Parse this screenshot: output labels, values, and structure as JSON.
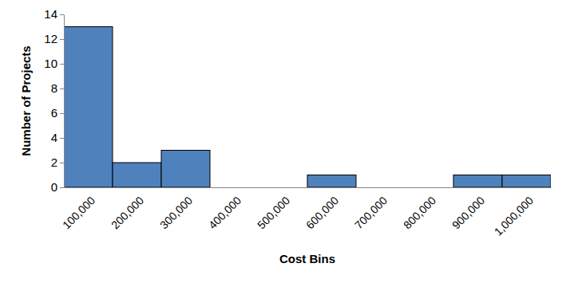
{
  "chart_data": {
    "type": "bar",
    "x_label": "Cost Bins",
    "y_label": "Number of Projects",
    "categories": [
      "100,000",
      "200,000",
      "300,000",
      "400,000",
      "500,000",
      "600,000",
      "700,000",
      "800,000",
      "900,000",
      "1,000,000"
    ],
    "values": [
      13,
      2,
      3,
      0,
      0,
      1,
      0,
      0,
      1,
      1
    ],
    "color": "#4f81bd",
    "ylim": [
      0,
      14
    ],
    "yticks": [
      0,
      2,
      4,
      6,
      8,
      10,
      12,
      14
    ],
    "grid": false
  }
}
